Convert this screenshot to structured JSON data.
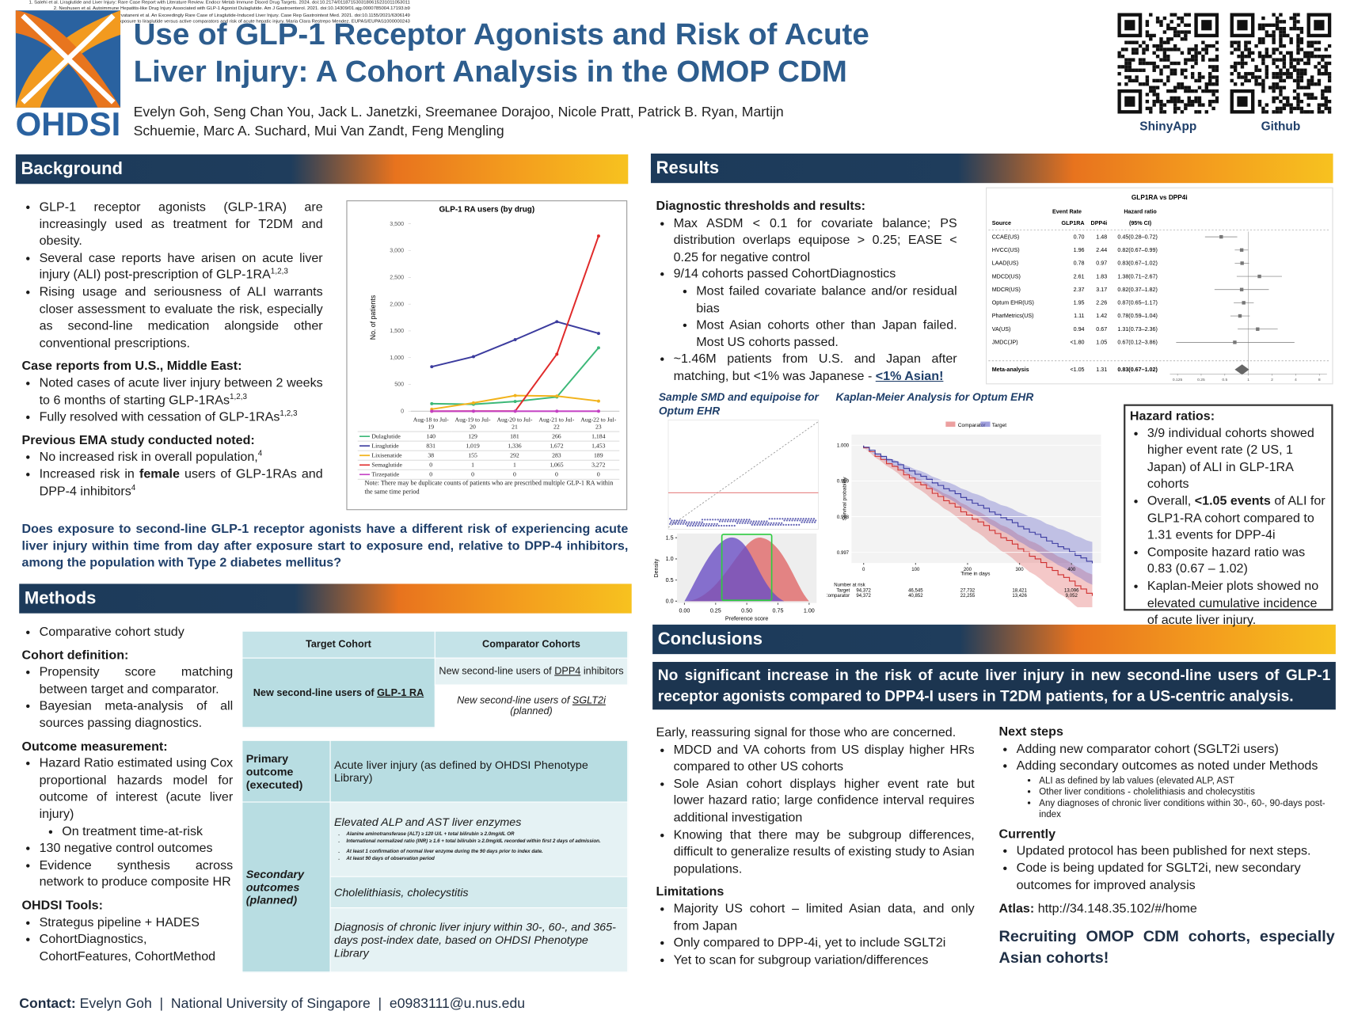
{
  "logo": {
    "text": "OHDSI"
  },
  "header": {
    "title": "Use of GLP-1 Receptor Agonists and Risk of Acute Liver Injury: A Cohort Analysis in the OMOP CDM",
    "authors": "Evelyn Goh, Seng Chan You, Jack L. Janetzki, Sreemanee Dorajoo, Nicole Pratt, Patrick B. Ryan, Martijn Schuemie, Marc A. Suchard, Mui Van Zandt, Feng Mengling",
    "qr_labels": [
      "ShinyApp",
      "Github"
    ]
  },
  "background": {
    "heading": "Background",
    "blocks": [
      {
        "list": [
          "GLP-1 receptor agonists (GLP-1RA) are increasingly used as treatment for T2DM and obesity.",
          [
            "Several case reports have arisen on acute liver injury (ALI) post-prescription of GLP-1RA",
            {
              "sup": "1,2,3"
            }
          ],
          "Rising usage and seriousness of ALI warrants closer assessment to evaluate the risk, especially as second-line medication alongside other conventional prescriptions."
        ]
      },
      {
        "heading": "Case reports from U.S., Middle East:"
      },
      {
        "list": [
          [
            "Noted cases of acute liver injury between 2 weeks to 6 months of starting GLP-1RAs",
            {
              "sup": "1,2,3"
            }
          ],
          [
            "Fully resolved with cessation of GLP-1RAs",
            {
              "sup": "1,2,3"
            }
          ]
        ]
      },
      {
        "heading": "Previous EMA study conducted noted:"
      },
      {
        "list": [
          [
            "No increased risk in overall population,",
            {
              "sup": "4"
            }
          ],
          [
            "Increased risk in ",
            {
              "b": "female"
            },
            " users of GLP-1RAs and DPP-4 inhibitors",
            {
              "sup": "4"
            }
          ]
        ]
      }
    ],
    "question": "Does exposure to second-line GLP-1 receptor agonists have a different risk of experiencing acute liver injury within time from day after exposure start to exposure end, relative to DPP-4 inhibitors, among the population with Type 2 diabetes mellitus?"
  },
  "chart_data": {
    "type": "line",
    "title": "GLP-1 RA users (by drug)",
    "y_label": "No. of patients",
    "categories": [
      "Aug-18 to Jul-19",
      "Aug-19 to Jul-20",
      "Aug-20 to Jul-21",
      "Aug-21 to Jul-22",
      "Aug-22 to Jul-23"
    ],
    "series": [
      {
        "name": "Dulaglutide",
        "color": "#3cb878",
        "values": [
          140,
          129,
          181,
          266,
          1184
        ],
        "value_labels": [
          "140",
          "129",
          "181",
          "266",
          "1,184"
        ]
      },
      {
        "name": "Liraglutide",
        "color": "#3b3b9e",
        "values": [
          831,
          1019,
          1336,
          1672,
          1453
        ],
        "value_labels": [
          "831",
          "1,019",
          "1,336",
          "1,672",
          "1,453"
        ]
      },
      {
        "name": "Lixisenatide",
        "color": "#f2b31c",
        "values": [
          38,
          155,
          292,
          283,
          189
        ],
        "value_labels": [
          "38",
          "155",
          "292",
          "283",
          "189"
        ]
      },
      {
        "name": "Semaglutide",
        "color": "#e02a2a",
        "values": [
          0,
          1,
          1,
          1065,
          3272
        ],
        "value_labels": [
          "0",
          "1",
          "1",
          "1,065",
          "3,272"
        ]
      },
      {
        "name": "Tirzepatide",
        "color": "#c33fc3",
        "values": [
          0,
          0,
          0,
          0,
          0
        ],
        "value_labels": [
          "0",
          "0",
          "0",
          "0",
          "0"
        ]
      }
    ],
    "ylim": [
      0,
      3500
    ],
    "yticks": [
      0,
      500,
      {
        "value": 1000,
        "label": "1,000"
      },
      {
        "value": 1500,
        "label": "1,500"
      },
      {
        "value": 2000,
        "label": "2,000"
      },
      {
        "value": 2500,
        "label": "2,500"
      },
      {
        "value": 3000,
        "label": "3,000"
      },
      {
        "value": 3500,
        "label": "3,500"
      }
    ],
    "grid": false,
    "note": "Note: There may be duplicate counts of patients who are prescribed multiple GLP-1 RA within the same time period"
  },
  "methods": {
    "heading": "Methods",
    "blocks": [
      {
        "list": [
          "Comparative cohort study"
        ]
      },
      {
        "heading": "Cohort definition:"
      },
      {
        "list": [
          "Propensity score matching between target and comparator.",
          "Bayesian meta-analysis of all sources passing diagnostics."
        ]
      },
      {
        "heading": "Outcome measurement:"
      },
      {
        "list": [
          {
            "text": "Hazard Ratio estimated using Cox proportional hazards model for outcome of interest (acute liver injury)",
            "items": [
              "On treatment time-at-risk"
            ]
          },
          "130 negative control outcomes",
          "Evidence synthesis across network to produce composite HR"
        ]
      },
      {
        "heading": "OHDSI Tools:"
      },
      {
        "list": [
          "Strategus pipeline + HADES",
          "CohortDiagnostics, CohortFeatures, CohortMethod"
        ]
      }
    ],
    "cohort_table": {
      "headers": [
        "Target Cohort",
        "Comparator Cohorts"
      ],
      "target": [
        "New second-line users of ",
        {
          "u": "GLP-1 RA"
        }
      ],
      "comparators": [
        [
          "New second-line users of ",
          {
            "u": "DPP4"
          },
          " inhibitors"
        ],
        [
          "New second-line users of ",
          {
            "u": "SGLT2i"
          },
          " (planned)"
        ]
      ]
    },
    "outcome_table": {
      "primary": {
        "label": "Primary outcome (executed)",
        "text": "Acute liver injury (as defined by OHDSI Phenotype Library)"
      },
      "secondary": {
        "label": "Secondary outcomes (planned)",
        "cells": [
          {
            "title": "Elevated ALP and AST liver enzymes",
            "notes": [
              "Alanine aminotransferase (ALT) ≥ 120 U/L + total bilirubin ≥ 2.0mg/dL OR",
              "International normalized ratio (INR) ≥ 1.6 + total bilirubin ≥ 2.0mg/dL recorded within first 2 days of admission.",
              "At least 1 confirmation of normal liver enzyme during the 90 days prior to index date.",
              "At least 90 days of observation period"
            ]
          },
          {
            "title": "Cholelithiasis, cholecystitis"
          },
          {
            "title": "Diagnosis of chronic liver injury within 30-, 60-, and 365-days post-index date, based on OHDSI Phenotype Library"
          }
        ]
      }
    },
    "contact": [
      {
        "b": "Contact:"
      },
      " Evelyn Goh  |  National University of Singapore  |  e0983111@u.nus.edu"
    ]
  },
  "results": {
    "heading": "Results",
    "blocks": [
      {
        "heading": "Diagnostic thresholds and results:"
      },
      {
        "list": [
          "Max ASDM < 0.1 for covariate balance; PS distribution overlaps equipose > 0.25; EASE < 0.25 for negative control",
          {
            "text": "9/14 cohorts passed CohortDiagnostics",
            "items": [
              "Most failed covariate balance and/or residual bias",
              "Most Asian cohorts other than Japan failed. Most US cohorts passed."
            ]
          },
          [
            "~1.46M patients from U.S. and Japan after matching, but <1% was Japanese - ",
            {
              "bu": "<1% Asian!"
            }
          ]
        ]
      }
    ],
    "forest_plot": {
      "title": "GLP1RA vs DPP4i",
      "group_headers": [
        "Event Rate",
        "Hazard ratio"
      ],
      "columns": [
        "Source",
        "GLP1RA",
        "DPP4i",
        "(95% CI)"
      ],
      "rows": [
        {
          "source": "CCAE(US)",
          "glp1ra": "0.70",
          "dpp4i": "1.48",
          "hr_label": "0.45(0.28–0.72)",
          "hr": 0.45,
          "lo": 0.28,
          "hi": 0.72
        },
        {
          "source": "HVCC(US)",
          "glp1ra": "1.96",
          "dpp4i": "2.44",
          "hr_label": "0.82(0.67–0.99)",
          "hr": 0.82,
          "lo": 0.67,
          "hi": 0.99
        },
        {
          "source": "LAAD(US)",
          "glp1ra": "0.78",
          "dpp4i": "0.97",
          "hr_label": "0.83(0.67–1.02)",
          "hr": 0.83,
          "lo": 0.67,
          "hi": 1.02
        },
        {
          "source": "MDCD(US)",
          "glp1ra": "2.61",
          "dpp4i": "1.83",
          "hr_label": "1.38(0.71–2.67)",
          "hr": 1.38,
          "lo": 0.71,
          "hi": 2.67
        },
        {
          "source": "MDCR(US)",
          "glp1ra": "2.37",
          "dpp4i": "3.17",
          "hr_label": "0.82(0.37–1.82)",
          "hr": 0.82,
          "lo": 0.37,
          "hi": 1.82
        },
        {
          "source": "Optum EHR(US)",
          "glp1ra": "1.95",
          "dpp4i": "2.26",
          "hr_label": "0.87(0.65–1.17)",
          "hr": 0.87,
          "lo": 0.65,
          "hi": 1.17
        },
        {
          "source": "PharMetrics(US)",
          "glp1ra": "1.11",
          "dpp4i": "1.42",
          "hr_label": "0.78(0.59–1.04)",
          "hr": 0.78,
          "lo": 0.59,
          "hi": 1.04
        },
        {
          "source": "VA(US)",
          "glp1ra": "0.94",
          "dpp4i": "0.67",
          "hr_label": "1.31(0.73–2.36)",
          "hr": 1.31,
          "lo": 0.73,
          "hi": 2.36
        },
        {
          "source": "JMDC(JP)",
          "glp1ra": "<1.80",
          "dpp4i": "1.05",
          "hr_label": "0.67(0.12–3.86)",
          "hr": 0.67,
          "lo": 0.12,
          "hi": 3.86
        }
      ],
      "meta": {
        "source": "Meta-analysis",
        "glp1ra": "<1.05",
        "dpp4i": "1.31",
        "hr_label": "0.83(0.67–1.02)",
        "hr": 0.83,
        "lo": 0.67,
        "hi": 1.02
      },
      "log": true,
      "xlim": [
        0.1,
        10
      ],
      "xticks": [
        0.125,
        0.25,
        0.5,
        1,
        2,
        4,
        8
      ]
    },
    "smd_plot": {
      "title": "Sample SMD and equipoise for Optum EHR",
      "x_label": "Preference score",
      "y_label": "Density",
      "xlim": [
        -0.06,
        1.06
      ],
      "ylim": [
        0,
        1.6
      ],
      "xticks": [
        {
          "value": 0,
          "label": "0.00"
        },
        0.25,
        {
          "value": 0.5,
          "label": "0.50"
        },
        0.75,
        {
          "value": 1,
          "label": "1.00"
        }
      ],
      "yticks": [
        {
          "value": 0,
          "label": "0.0"
        },
        0.5,
        {
          "value": 1,
          "label": "1.0"
        },
        1.5
      ]
    },
    "km_plot": {
      "title": "Kaplan-Meier Analysis for Optum EHR",
      "legend": [
        "Comparator",
        "Target"
      ],
      "x_label": "Time in days",
      "y_label": "Survival probability",
      "xlim": [
        -20,
        450
      ],
      "ylim": [
        0.9968,
        1.0002
      ],
      "xticks": [
        0,
        100,
        200,
        300,
        400
      ],
      "yticks": [
        {
          "value": 1,
          "label": "1.000"
        },
        0.999,
        0.998,
        0.997
      ],
      "at_risk_title": "Number at risk",
      "at_risk": [
        {
          "name": "Target",
          "counts": [
            "94,372",
            "46,545",
            "27,732",
            "18,421",
            "13,096"
          ]
        },
        {
          "name": "Comparator",
          "counts": [
            "94,372",
            "40,852",
            "22,255",
            "13,426",
            "9,052"
          ]
        }
      ]
    },
    "hazard_ratios": {
      "heading": "Hazard ratios:",
      "list": [
        "3/9 individual cohorts showed higher event rate (2 US, 1 Japan) of ALI in GLP-1RA cohorts",
        [
          "Overall, ",
          {
            "b": "<1.05 events"
          },
          " of ALI for GLP1-RA cohort compared to 1.31 events for DPP-4i"
        ],
        "Composite hazard ratio was 0.83 (0.67 – 1.02)",
        "Kaplan-Meier plots showed no elevated cumulative incidence of acute liver injury."
      ]
    }
  },
  "conclusions": {
    "heading": "Conclusions",
    "banner": "No significant increase in the risk of acute liver injury in new second-line users of GLP-1 receptor agonists compared to DPP4-I users in T2DM patients, for a US-centric analysis.",
    "left": [
      {
        "para": "Early, reassuring signal for those who are concerned."
      },
      {
        "list": [
          "MDCD and VA cohorts from US display higher HRs compared to other US cohorts",
          "Sole Asian cohort displays higher event rate but lower hazard ratio; large confidence interval requires additional investigation",
          "Knowing that there may be subgroup differences, difficult to generalize results of existing study to Asian populations."
        ]
      },
      {
        "heading": "Limitations"
      },
      {
        "list": [
          "Majority US cohort – limited Asian data, and only from Japan",
          "Only compared to DPP-4i, yet to include SGLT2i",
          "Yet to scan for subgroup variation/differences"
        ]
      }
    ],
    "right": [
      {
        "heading": "Next steps"
      },
      {
        "list": [
          "Adding new comparator cohort (SGLT2i users)",
          {
            "text": "Adding secondary outcomes as noted under Methods",
            "items": [
              "ALI as defined by lab values (elevated ALP, AST",
              "Other liver conditions - cholelithiasis and cholecystitis",
              "Any diagnoses of chronic liver conditions within 30-, 60-, 90-days post-index"
            ]
          }
        ]
      },
      {
        "heading": "Currently"
      },
      {
        "list": [
          "Updated protocol has been published for next steps.",
          "Code is being updated for SGLT2i, new secondary outcomes for improved analysis"
        ]
      },
      {
        "para": [
          {
            "b": "Atlas:"
          },
          " http://34.148.35.102/#/home"
        ]
      },
      {
        "callout": "Recruiting OMOP CDM cohorts, especially Asian cohorts!"
      }
    ]
  },
  "references": [
    "1. Salehi et al. Liraglutide and Liver Injury: Rare Case Report with Literature Review. Endocr Metab Immune Disord Drug Targets. 2024. doi:10.2174/0118715303180615231011053011",
    "2. Neshusen et al. Autoimmune Hepatitis-like Drug Injury Associated with GLP-1 Agonist Dulaglutide. Am J Gastroenterol. 2021. doi:10.14309/01.ajg.0000785004.17193.b9",
    "3. Parvataneni et al. An Exceedingly Rare Case of Liraglutide-Induced Liver Injury. Case Rep Gastrointest Med. 2021. doi:10.1155/2021/6306149",
    "4. Association between exposure to liraglutide versus active comparators and risk of acute hepatic injury. Maria Clara Restrepo Mendez. EUPAS/EUPAS1000000243"
  ]
}
